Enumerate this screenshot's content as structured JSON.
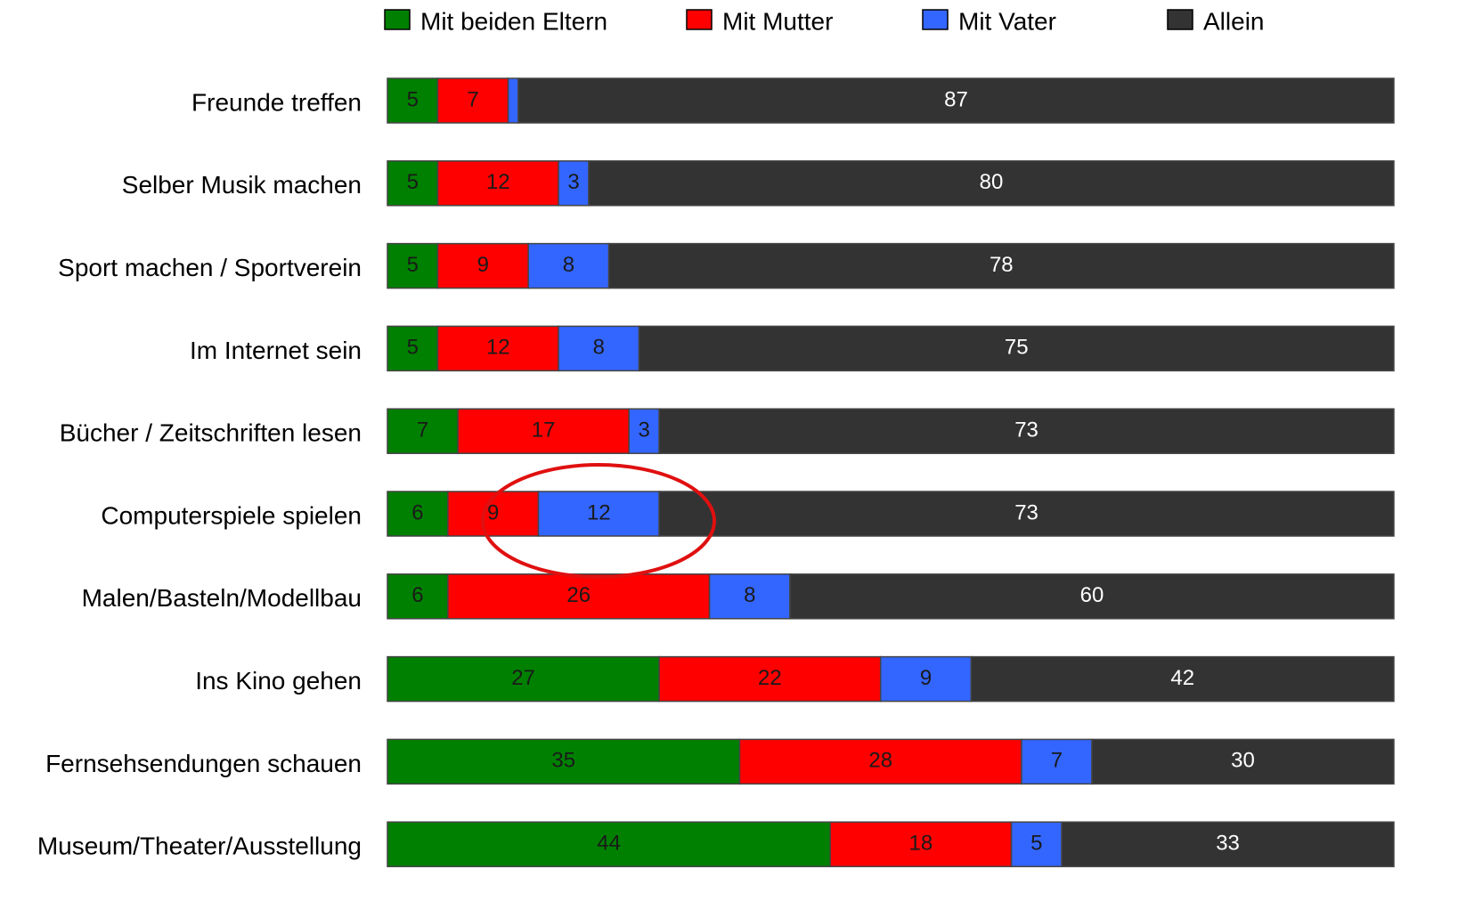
{
  "chart_data": {
    "type": "stacked-bar-horizontal",
    "categories": [
      "Freunde treffen",
      "Selber Musik machen",
      "Sport machen / Sportverein",
      "Im Internet sein",
      "Bücher / Zeitschriften lesen",
      "Computerspiele spielen",
      "Malen/Basteln/Modellbau",
      "Ins Kino gehen",
      "Fernsehsendungen schauen",
      "Museum/Theater/Ausstellung"
    ],
    "series": [
      {
        "name": "Mit beiden Eltern",
        "color": "#008000",
        "label_color": "#1a1a1a",
        "values": [
          5,
          5,
          5,
          5,
          7,
          6,
          6,
          27,
          35,
          44
        ]
      },
      {
        "name": "Mit Mutter",
        "color": "#ff0000",
        "label_color": "#1a1a1a",
        "values": [
          7,
          12,
          9,
          12,
          17,
          9,
          26,
          22,
          28,
          18
        ]
      },
      {
        "name": "Mit Vater",
        "color": "#3366ff",
        "label_color": "#1a1a1a",
        "values": [
          1,
          3,
          8,
          8,
          3,
          12,
          8,
          9,
          7,
          5
        ],
        "value_labels": [
          null,
          "3",
          "8",
          "8",
          "3",
          "12",
          "8",
          "9",
          "7",
          "5"
        ]
      },
      {
        "name": "Allein",
        "color": "#333333",
        "label_color": "#ffffff",
        "values": [
          87,
          80,
          78,
          75,
          73,
          73,
          60,
          42,
          30,
          33
        ]
      }
    ],
    "legend": "top"
  }
}
